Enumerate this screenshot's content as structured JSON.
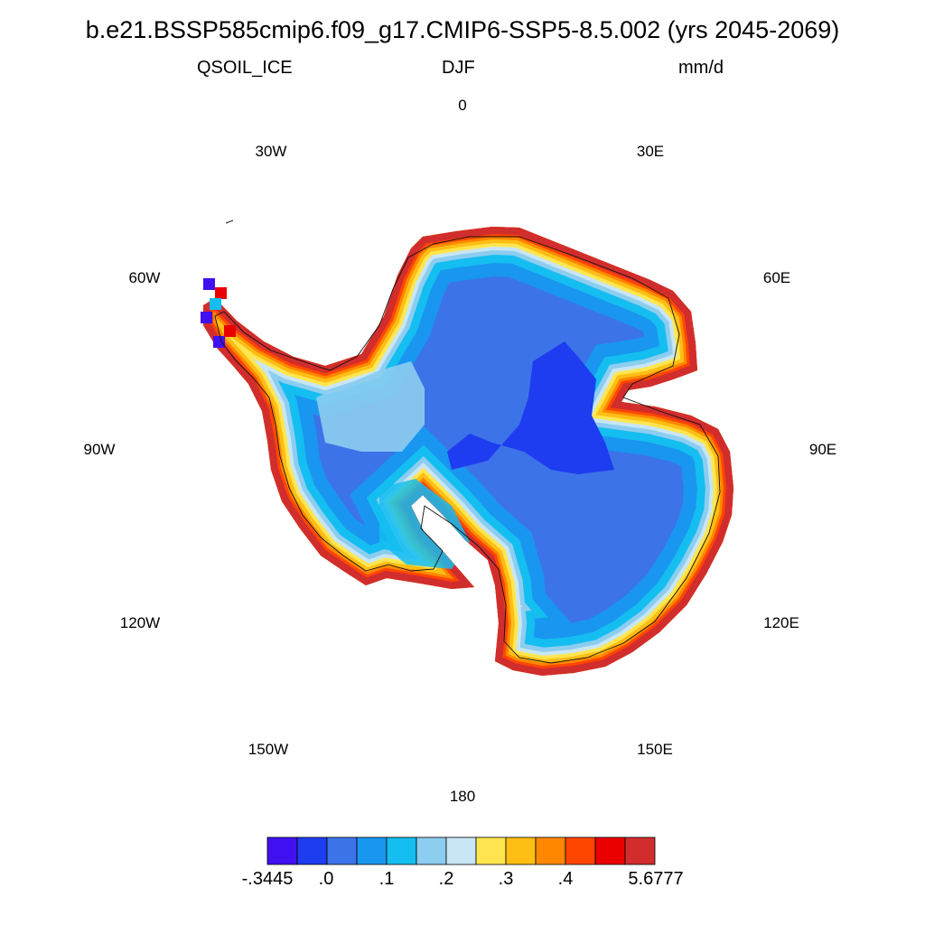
{
  "title": "b.e21.BSSP585cmip6.f09_g17.CMIP6-SSP5-8.5.002 (yrs 2045-2069)",
  "variable": "QSOIL_ICE",
  "season": "DJF",
  "units": "mm/d",
  "longitude_labels": {
    "lon_0": "0",
    "lon_30e": "30E",
    "lon_60e": "60E",
    "lon_90e": "90E",
    "lon_120e": "120E",
    "lon_150e": "150E",
    "lon_180": "180",
    "lon_150w": "150W",
    "lon_120w": "120W",
    "lon_90w": "90W",
    "lon_60w": "60W",
    "lon_30w": "30W"
  },
  "colorbar": {
    "colors": [
      "#4010f0",
      "#1e3cf0",
      "#3c73e8",
      "#1996f0",
      "#14bef0",
      "#8ccdf0",
      "#c8e6f5",
      "#ffe650",
      "#ffbe14",
      "#ff8700",
      "#ff4600",
      "#eb0000",
      "#d22d2d"
    ],
    "tick_labels": [
      "-.3445",
      ".0",
      ".1",
      ".2",
      ".3",
      ".4",
      "5.6777"
    ]
  }
}
